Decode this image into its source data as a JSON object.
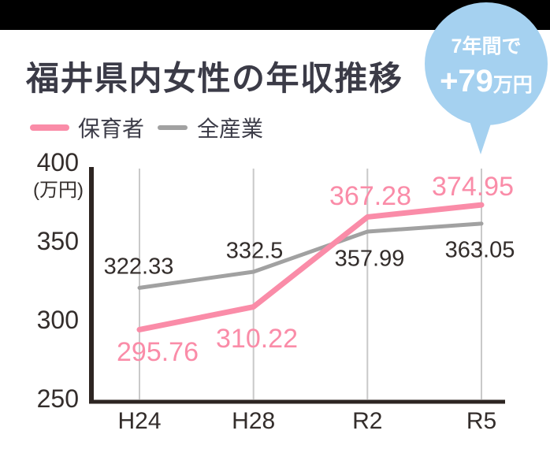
{
  "title": "福井県内女性の年収推移",
  "badge": {
    "line1": "7年間で",
    "value": "+79",
    "unit": "万円",
    "bg_color": "#a5d1f0",
    "text_color": "#ffffff"
  },
  "y_axis": {
    "unit_label": "(万円)"
  },
  "chart_data": {
    "type": "line",
    "title": "福井県内女性の年収推移",
    "categories": [
      "H24",
      "H28",
      "R2",
      "R5"
    ],
    "series": [
      {
        "name": "保育者",
        "color": "#fa8ca8",
        "values": [
          295.76,
          310.22,
          367.28,
          374.95
        ]
      },
      {
        "name": "全産業",
        "color": "#a1a1a1",
        "values": [
          322.33,
          332.5,
          357.99,
          363.05
        ]
      }
    ],
    "ylabel": "万円",
    "ylim": [
      250,
      400
    ],
    "yticks": [
      250,
      300,
      350,
      400
    ],
    "grid": "vertical",
    "legend_position": "top-left",
    "annotation": "7年間で+79万円"
  }
}
